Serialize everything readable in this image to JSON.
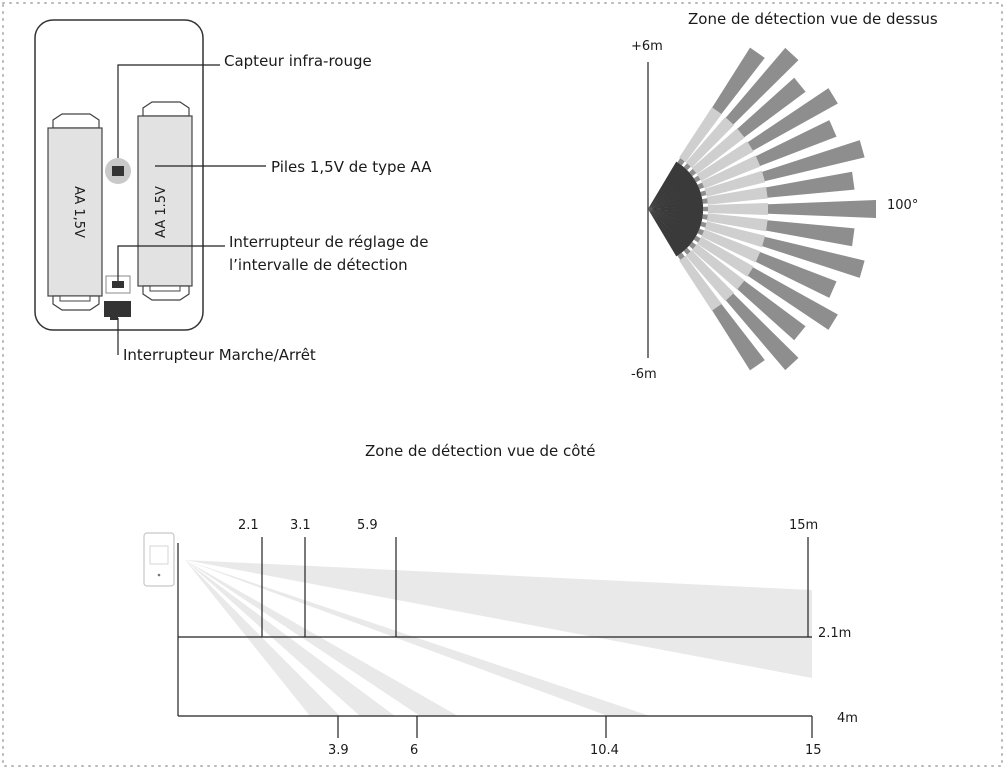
{
  "colors": {
    "border_dots": "#b8b8b8",
    "battery_fill": "#e2e2e2",
    "sensor_ring": "#c9c9c9",
    "switch_dark": "#333333",
    "ray_dark": "#8e8e8e",
    "ray_light": "#cfcfcf",
    "side_beam": "#e9e9e9",
    "line": "#222222"
  },
  "icons": [
    "infrared-sensor-icon",
    "battery-icon",
    "switch-icon",
    "motion-sensor-device-icon"
  ],
  "battery": {
    "left_label": "AA 1,5V",
    "right_label": "AA 1.5V"
  },
  "callouts": {
    "sensor": "Capteur infra-rouge",
    "batteries": "Piles 1,5V de type AA",
    "interval_line1": "Interrupteur de réglage de",
    "interval_line2": "l’intervalle de détection",
    "power": "Interrupteur Marche/Arrêt"
  },
  "top_view": {
    "title": "Zone de détection vue de dessus",
    "top_label": "+6m",
    "bottom_label": "-6m",
    "angle_label": "100°",
    "angle_deg": 100,
    "range_m": 6
  },
  "side_view": {
    "title": "Zone de détection vue de côté",
    "top_marks": [
      "2.1",
      "3.1",
      "5.9",
      "15m"
    ],
    "top_mark_values_m": [
      2.1,
      3.1,
      5.9,
      15
    ],
    "bottom_marks": [
      "3.9",
      "6",
      "10.4",
      "15"
    ],
    "bottom_mark_values_m": [
      3.9,
      6,
      10.4,
      15
    ],
    "height_label": "2.1m",
    "floor_label": "4m",
    "mount_height_m": 2.1,
    "floor_depth_m": 4
  }
}
